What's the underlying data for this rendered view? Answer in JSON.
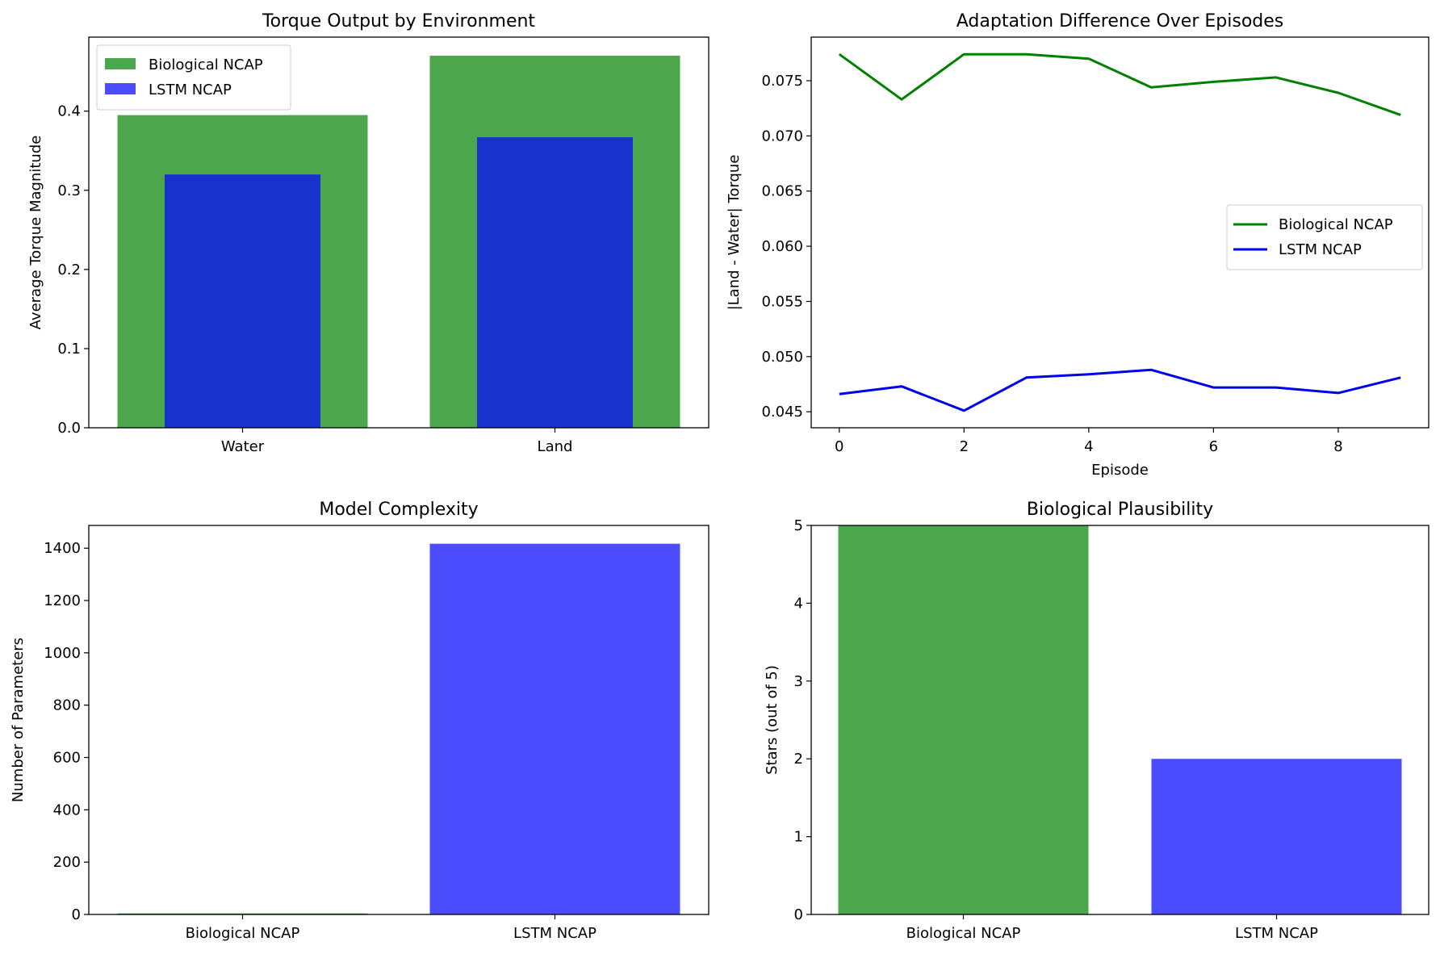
{
  "colors": {
    "bio": "#4ca64c",
    "lstm": "#4c4cff",
    "lstm_overlap": "#1733cc",
    "bio_line": "#008000",
    "lstm_line": "#0000ee",
    "axis": "#000000"
  },
  "chart_data": [
    {
      "id": "torque",
      "type": "bar",
      "title": "Torque Output by Environment",
      "xlabel": "",
      "ylabel": "Average Torque Magnitude",
      "categories": [
        "Water",
        "Land"
      ],
      "series": [
        {
          "name": "Biological NCAP",
          "values": [
            0.395,
            0.47
          ]
        },
        {
          "name": "LSTM NCAP",
          "values": [
            0.32,
            0.367
          ]
        }
      ],
      "ylim": [
        0,
        0.4935
      ],
      "yticks": [
        0.0,
        0.1,
        0.2,
        0.3,
        0.4
      ],
      "ytick_labels": [
        "0.0",
        "0.1",
        "0.2",
        "0.3",
        "0.4"
      ],
      "legend": "top-left",
      "grid": false
    },
    {
      "id": "adaptation",
      "type": "line",
      "title": "Adaptation Difference Over Episodes",
      "xlabel": "Episode",
      "ylabel": "|Land - Water| Torque",
      "x": [
        0,
        1,
        2,
        3,
        4,
        5,
        6,
        7,
        8,
        9
      ],
      "series": [
        {
          "name": "Biological NCAP",
          "values": [
            0.0774,
            0.0733,
            0.0774,
            0.0774,
            0.077,
            0.0744,
            0.0749,
            0.0753,
            0.0739,
            0.0719
          ]
        },
        {
          "name": "LSTM NCAP",
          "values": [
            0.0466,
            0.0473,
            0.0451,
            0.0481,
            0.0484,
            0.0488,
            0.0472,
            0.0472,
            0.0467,
            0.0481
          ]
        }
      ],
      "xlim": [
        -0.45,
        9.45
      ],
      "ylim": [
        0.04355,
        0.07895
      ],
      "xticks": [
        0,
        2,
        4,
        6,
        8
      ],
      "xtick_labels": [
        "0",
        "2",
        "4",
        "6",
        "8"
      ],
      "yticks": [
        0.045,
        0.05,
        0.055,
        0.06,
        0.065,
        0.07,
        0.075
      ],
      "ytick_labels": [
        "0.045",
        "0.050",
        "0.055",
        "0.060",
        "0.065",
        "0.070",
        "0.075"
      ],
      "legend": "center-right",
      "grid": false
    },
    {
      "id": "complexity",
      "type": "bar",
      "title": "Model Complexity",
      "xlabel": "",
      "ylabel": "Number of Parameters",
      "categories": [
        "Biological NCAP",
        "LSTM NCAP"
      ],
      "values": [
        4,
        1417
      ],
      "ylim": [
        0,
        1487
      ],
      "yticks": [
        0,
        200,
        400,
        600,
        800,
        1000,
        1200,
        1400
      ],
      "ytick_labels": [
        "0",
        "200",
        "400",
        "600",
        "800",
        "1000",
        "1200",
        "1400"
      ],
      "grid": false
    },
    {
      "id": "plausibility",
      "type": "bar",
      "title": "Biological Plausibility",
      "xlabel": "",
      "ylabel": "Stars (out of 5)",
      "categories": [
        "Biological NCAP",
        "LSTM NCAP"
      ],
      "values": [
        5,
        2
      ],
      "ylim": [
        0,
        5
      ],
      "yticks": [
        0,
        1,
        2,
        3,
        4,
        5
      ],
      "ytick_labels": [
        "0",
        "1",
        "2",
        "3",
        "4",
        "5"
      ],
      "grid": false
    }
  ]
}
